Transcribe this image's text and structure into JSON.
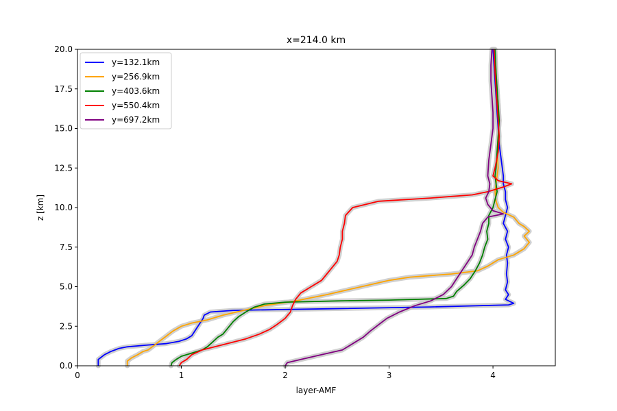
{
  "chart_data": {
    "type": "line",
    "title": "x=214.0 km",
    "xlabel": "layer-AMF",
    "ylabel": "z [km]",
    "xlim": [
      0,
      4.6
    ],
    "ylim": [
      0,
      20
    ],
    "xticks": [
      0,
      1,
      2,
      3,
      4
    ],
    "xtick_labels": [
      "0",
      "1",
      "2",
      "3",
      "4"
    ],
    "yticks": [
      0,
      2.5,
      5,
      7.5,
      10,
      12.5,
      15,
      17.5,
      20
    ],
    "ytick_labels": [
      "0.0",
      "2.5",
      "5.0",
      "7.5",
      "10.0",
      "12.5",
      "15.0",
      "17.5",
      "20.0"
    ],
    "grid": false,
    "legend_position": "upper-left",
    "series": [
      {
        "name": "y=132.1km",
        "color": "#0000ff",
        "points": [
          [
            0.2,
            0.0
          ],
          [
            0.2,
            0.4
          ],
          [
            0.22,
            0.5
          ],
          [
            0.26,
            0.7
          ],
          [
            0.32,
            0.9
          ],
          [
            0.4,
            1.1
          ],
          [
            0.48,
            1.2
          ],
          [
            0.65,
            1.3
          ],
          [
            0.85,
            1.4
          ],
          [
            0.98,
            1.55
          ],
          [
            1.05,
            1.7
          ],
          [
            1.1,
            1.9
          ],
          [
            1.13,
            2.2
          ],
          [
            1.17,
            2.6
          ],
          [
            1.21,
            3.0
          ],
          [
            1.22,
            3.2
          ],
          [
            1.28,
            3.4
          ],
          [
            1.5,
            3.5
          ],
          [
            2.4,
            3.6
          ],
          [
            3.4,
            3.72
          ],
          [
            4.15,
            3.85
          ],
          [
            4.2,
            3.95
          ],
          [
            4.12,
            4.2
          ],
          [
            4.15,
            4.5
          ],
          [
            4.12,
            4.8
          ],
          [
            4.14,
            5.3
          ],
          [
            4.13,
            5.8
          ],
          [
            4.14,
            6.5
          ],
          [
            4.13,
            7.0
          ],
          [
            4.15,
            7.5
          ],
          [
            4.12,
            8.0
          ],
          [
            4.14,
            8.5
          ],
          [
            4.1,
            9.0
          ],
          [
            4.12,
            9.5
          ],
          [
            4.14,
            10.0
          ],
          [
            4.12,
            10.5
          ],
          [
            4.12,
            11.0
          ],
          [
            4.1,
            11.5
          ],
          [
            4.1,
            12.0
          ],
          [
            4.09,
            12.5
          ],
          [
            4.08,
            13.0
          ],
          [
            4.06,
            14.0
          ],
          [
            4.05,
            15.0
          ],
          [
            4.04,
            16.0
          ],
          [
            4.03,
            17.0
          ],
          [
            4.02,
            18.0
          ],
          [
            4.01,
            19.0
          ],
          [
            4.0,
            20.0
          ]
        ]
      },
      {
        "name": "y=256.9km",
        "color": "#ffa500",
        "points": [
          [
            0.48,
            0.0
          ],
          [
            0.48,
            0.3
          ],
          [
            0.52,
            0.5
          ],
          [
            0.58,
            0.7
          ],
          [
            0.63,
            0.9
          ],
          [
            0.68,
            1.0
          ],
          [
            0.74,
            1.3
          ],
          [
            0.8,
            1.6
          ],
          [
            0.86,
            1.9
          ],
          [
            0.92,
            2.2
          ],
          [
            1.0,
            2.5
          ],
          [
            1.1,
            2.7
          ],
          [
            1.25,
            2.9
          ],
          [
            1.4,
            3.2
          ],
          [
            1.6,
            3.5
          ],
          [
            1.8,
            3.8
          ],
          [
            2.1,
            4.1
          ],
          [
            2.4,
            4.5
          ],
          [
            2.6,
            4.8
          ],
          [
            2.8,
            5.1
          ],
          [
            3.0,
            5.4
          ],
          [
            3.2,
            5.6
          ],
          [
            3.6,
            5.8
          ],
          [
            3.85,
            6.0
          ],
          [
            3.95,
            6.3
          ],
          [
            4.05,
            6.7
          ],
          [
            4.2,
            7.0
          ],
          [
            4.3,
            7.4
          ],
          [
            4.35,
            7.8
          ],
          [
            4.3,
            8.2
          ],
          [
            4.35,
            8.5
          ],
          [
            4.3,
            8.8
          ],
          [
            4.25,
            9.0
          ],
          [
            4.2,
            9.4
          ],
          [
            4.1,
            9.7
          ],
          [
            4.05,
            10.0
          ],
          [
            4.03,
            10.4
          ],
          [
            4.02,
            11.0
          ],
          [
            4.03,
            11.5
          ],
          [
            4.04,
            12.0
          ],
          [
            4.05,
            12.5
          ],
          [
            4.04,
            13.5
          ],
          [
            4.05,
            14.5
          ],
          [
            4.06,
            15.5
          ],
          [
            4.05,
            16.5
          ],
          [
            4.04,
            17.5
          ],
          [
            4.03,
            18.5
          ],
          [
            4.02,
            19.5
          ],
          [
            4.01,
            20.0
          ]
        ]
      },
      {
        "name": "y=403.6km",
        "color": "#008000",
        "points": [
          [
            0.9,
            0.0
          ],
          [
            0.91,
            0.2
          ],
          [
            0.95,
            0.4
          ],
          [
            1.0,
            0.6
          ],
          [
            1.1,
            0.8
          ],
          [
            1.2,
            1.0
          ],
          [
            1.25,
            1.2
          ],
          [
            1.3,
            1.5
          ],
          [
            1.35,
            1.8
          ],
          [
            1.4,
            2.0
          ],
          [
            1.45,
            2.4
          ],
          [
            1.5,
            2.8
          ],
          [
            1.55,
            3.1
          ],
          [
            1.62,
            3.4
          ],
          [
            1.7,
            3.7
          ],
          [
            1.8,
            3.9
          ],
          [
            2.0,
            4.02
          ],
          [
            2.5,
            4.1
          ],
          [
            3.0,
            4.15
          ],
          [
            3.55,
            4.25
          ],
          [
            3.62,
            4.4
          ],
          [
            3.65,
            4.7
          ],
          [
            3.72,
            5.1
          ],
          [
            3.78,
            5.5
          ],
          [
            3.83,
            6.0
          ],
          [
            3.87,
            6.5
          ],
          [
            3.9,
            7.0
          ],
          [
            3.92,
            7.5
          ],
          [
            3.95,
            8.0
          ],
          [
            3.94,
            8.5
          ],
          [
            3.96,
            9.0
          ],
          [
            3.96,
            9.5
          ],
          [
            4.0,
            10.0
          ],
          [
            4.02,
            10.5
          ],
          [
            4.04,
            11.0
          ],
          [
            4.03,
            11.5
          ],
          [
            4.02,
            12.0
          ],
          [
            4.03,
            12.5
          ],
          [
            4.04,
            13.5
          ],
          [
            4.05,
            14.5
          ],
          [
            4.06,
            15.5
          ],
          [
            4.05,
            16.5
          ],
          [
            4.04,
            17.5
          ],
          [
            4.03,
            18.5
          ],
          [
            4.02,
            20.0
          ]
        ]
      },
      {
        "name": "y=550.4km",
        "color": "#ff0000",
        "points": [
          [
            0.98,
            0.0
          ],
          [
            1.0,
            0.2
          ],
          [
            1.05,
            0.4
          ],
          [
            1.1,
            0.7
          ],
          [
            1.2,
            1.0
          ],
          [
            1.35,
            1.25
          ],
          [
            1.5,
            1.5
          ],
          [
            1.62,
            1.7
          ],
          [
            1.75,
            2.0
          ],
          [
            1.85,
            2.3
          ],
          [
            1.92,
            2.6
          ],
          [
            2.0,
            3.0
          ],
          [
            2.05,
            3.4
          ],
          [
            2.07,
            3.8
          ],
          [
            2.1,
            4.2
          ],
          [
            2.15,
            4.6
          ],
          [
            2.25,
            5.0
          ],
          [
            2.35,
            5.4
          ],
          [
            2.4,
            5.8
          ],
          [
            2.45,
            6.2
          ],
          [
            2.5,
            6.6
          ],
          [
            2.52,
            7.0
          ],
          [
            2.53,
            7.5
          ],
          [
            2.55,
            8.0
          ],
          [
            2.55,
            8.5
          ],
          [
            2.57,
            9.0
          ],
          [
            2.58,
            9.5
          ],
          [
            2.65,
            10.0
          ],
          [
            2.9,
            10.4
          ],
          [
            3.4,
            10.6
          ],
          [
            3.8,
            10.8
          ],
          [
            3.95,
            11.0
          ],
          [
            4.1,
            11.3
          ],
          [
            4.18,
            11.5
          ],
          [
            4.05,
            11.7
          ],
          [
            4.0,
            12.0
          ],
          [
            4.02,
            12.5
          ],
          [
            4.05,
            13.5
          ],
          [
            4.06,
            14.5
          ],
          [
            4.05,
            15.5
          ],
          [
            4.04,
            16.5
          ],
          [
            4.03,
            17.5
          ],
          [
            4.02,
            18.5
          ],
          [
            4.01,
            20.0
          ]
        ]
      },
      {
        "name": "y=697.2km",
        "color": "#800080",
        "points": [
          [
            2.0,
            0.0
          ],
          [
            2.02,
            0.2
          ],
          [
            2.15,
            0.4
          ],
          [
            2.35,
            0.7
          ],
          [
            2.55,
            1.0
          ],
          [
            2.65,
            1.4
          ],
          [
            2.75,
            1.8
          ],
          [
            2.82,
            2.2
          ],
          [
            2.9,
            2.6
          ],
          [
            2.98,
            3.0
          ],
          [
            3.1,
            3.4
          ],
          [
            3.25,
            3.8
          ],
          [
            3.4,
            4.1
          ],
          [
            3.52,
            4.5
          ],
          [
            3.6,
            5.0
          ],
          [
            3.65,
            5.5
          ],
          [
            3.7,
            6.0
          ],
          [
            3.75,
            6.5
          ],
          [
            3.8,
            7.0
          ],
          [
            3.82,
            7.5
          ],
          [
            3.85,
            8.0
          ],
          [
            3.88,
            8.5
          ],
          [
            3.9,
            9.0
          ],
          [
            3.95,
            9.4
          ],
          [
            4.1,
            9.6
          ],
          [
            4.0,
            9.8
          ],
          [
            3.95,
            10.2
          ],
          [
            3.93,
            10.6
          ],
          [
            3.96,
            11.0
          ],
          [
            3.97,
            11.5
          ],
          [
            3.95,
            12.0
          ],
          [
            3.96,
            13.0
          ],
          [
            3.98,
            14.0
          ],
          [
            4.0,
            15.0
          ],
          [
            4.0,
            16.0
          ],
          [
            3.99,
            17.0
          ],
          [
            3.98,
            18.0
          ],
          [
            3.98,
            19.0
          ],
          [
            3.99,
            20.0
          ]
        ]
      }
    ]
  }
}
